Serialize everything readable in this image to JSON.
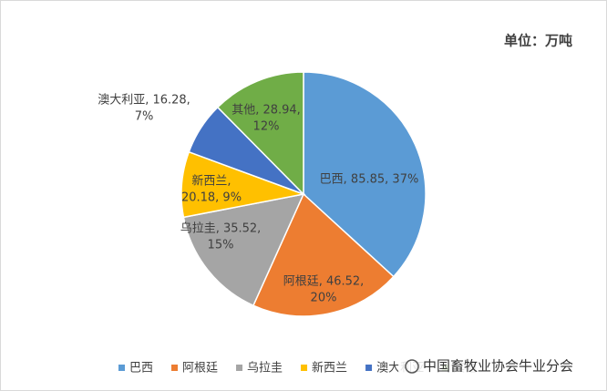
{
  "chart_data": {
    "type": "pie",
    "title": "单位：万吨",
    "categories": [
      "巴西",
      "阿根廷",
      "乌拉圭",
      "新西兰",
      "澳大利亚",
      "其他"
    ],
    "values": [
      85.85,
      46.52,
      35.52,
      20.18,
      16.28,
      28.94
    ],
    "value_labels": [
      [
        "巴西, 85.85, 37%"
      ],
      [
        "阿根廷, 46.52,",
        "20%"
      ],
      [
        "乌拉圭, 35.52,",
        "15%"
      ],
      [
        "新西兰,",
        "20.18, 9%"
      ],
      [
        "澳大利亚, 16.28,",
        "7%"
      ],
      [
        "其他, 28.94,",
        "12%"
      ]
    ],
    "colors": [
      "#5b9bd5",
      "#ed7d31",
      "#a5a5a5",
      "#ffc000",
      "#4472c4",
      "#70ad47"
    ],
    "legend": "bottom"
  },
  "watermark": "中国畜牧业协会牛业分会"
}
